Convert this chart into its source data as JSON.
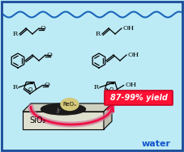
{
  "bg_color": "#bceaf5",
  "border_color": "#1a4a9a",
  "wave_color": "#1a66bb",
  "yield_box_bg": "#ff1133",
  "yield_text": "87-99% yield",
  "yield_text_color": "white",
  "sio2_text": "SiO₂",
  "water_text": "water",
  "reo_text": "ReOₓ",
  "ir_text": "Ir",
  "arrow_color": "#ee1144",
  "arrow_fill_color": "#cc7799",
  "figsize": [
    2.27,
    1.88
  ],
  "dpi": 100
}
